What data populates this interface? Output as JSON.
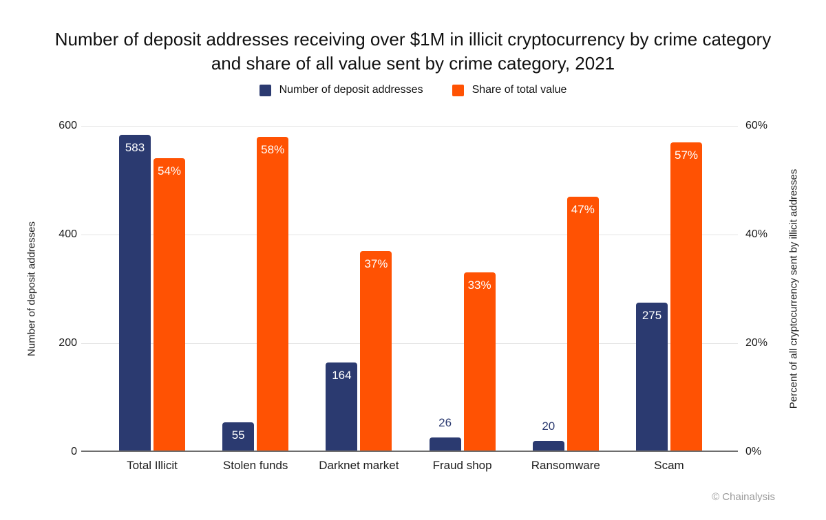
{
  "title": "Number of deposit addresses receiving over $1M in illicit cryptocurrency by crime category and share of all value sent by crime category, 2021",
  "footer": "© Chainalysis",
  "colors": {
    "navy": "#2B3A70",
    "orange": "#FF5203",
    "gridline": "#e4e4e4",
    "baseline": "#6e6e6e"
  },
  "legend": {
    "items": [
      {
        "label": "Number of deposit addresses",
        "color": "#2B3A70"
      },
      {
        "label": "Share of total value",
        "color": "#FF5203"
      }
    ]
  },
  "chart_data": {
    "type": "bar",
    "categories": [
      "Total Illicit",
      "Stolen funds",
      "Darknet market",
      "Fraud shop",
      "Ransomware",
      "Scam"
    ],
    "series": [
      {
        "name": "Number of deposit addresses",
        "axis": "left",
        "color": "#2B3A70",
        "values": [
          583,
          55,
          164,
          26,
          20,
          275
        ],
        "labels": [
          "583",
          "55",
          "164",
          "26",
          "20",
          "275"
        ]
      },
      {
        "name": "Share of total value",
        "axis": "right",
        "color": "#FF5203",
        "values": [
          54,
          58,
          37,
          33,
          47,
          57
        ],
        "labels": [
          "54%",
          "58%",
          "37%",
          "33%",
          "47%",
          "57%"
        ]
      }
    ],
    "left_axis": {
      "title": "Number of deposit addresses",
      "max": 600,
      "ticks": [
        0,
        200,
        400,
        600
      ],
      "tick_labels": [
        "0",
        "200",
        "400",
        "600"
      ]
    },
    "right_axis": {
      "title": "Percent of all cryptocurrency sent by illicit addresses",
      "max": 60,
      "ticks": [
        0,
        20,
        40,
        60
      ],
      "tick_labels": [
        "0%",
        "20%",
        "40%",
        "60%"
      ]
    },
    "grid": true,
    "legend_position": "top"
  }
}
